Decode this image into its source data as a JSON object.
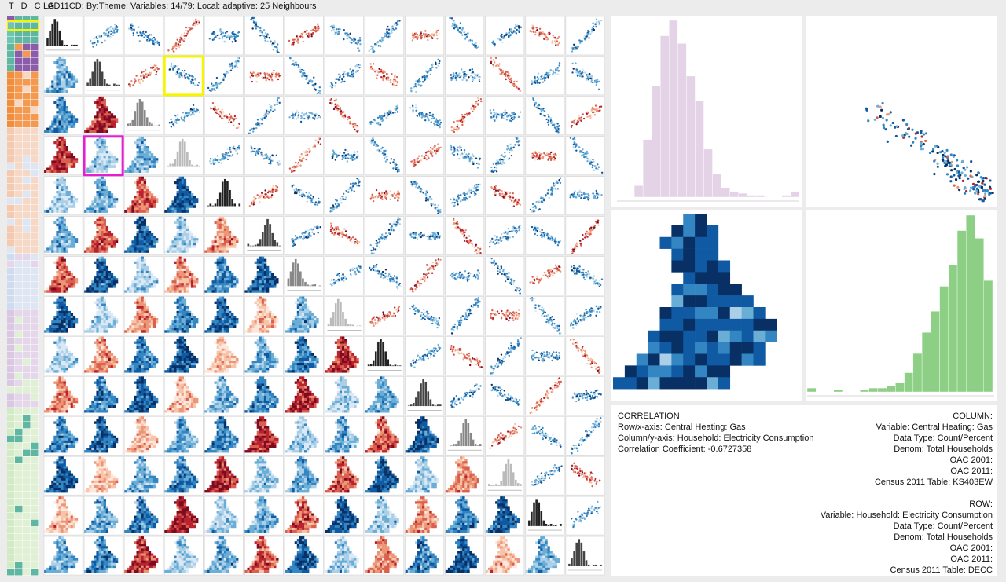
{
  "header": {
    "tdcg": "T D C G",
    "title": "LAD11CD: By:Theme: Variables: 14/79: Local: adaptive: 25 Neighbours"
  },
  "colors": {
    "reds": [
      "#fde7dc",
      "#f7c4a9",
      "#ec9677",
      "#d9604f",
      "#b9222f",
      "#7c0b22"
    ],
    "blues": [
      "#dbe9f6",
      "#abcfe6",
      "#6aaed6",
      "#3486c2",
      "#0f5aa3",
      "#083064"
    ],
    "neutral": "#f5f5f5",
    "hist_purple": "#e4d3e7",
    "hist_green": "#8ccf85",
    "highlight_yellow": "#f5f500",
    "highlight_magenta": "#e51fd0"
  },
  "correlation": {
    "heading": "CORRELATION",
    "row_axis": "Row/x-axis: Central Heating: Gas",
    "col_axis": "Column/y-axis: Household: Electricity Consumption",
    "coefficient": "Correlation Coefficient: -0.6727358"
  },
  "column": {
    "heading": "COLUMN:",
    "variable": "Variable: Central Heating: Gas",
    "data_type": "Data Type: Count/Percent",
    "denom": "Denom: Total Households",
    "oac2001": "OAC 2001:",
    "oac2011": "OAC 2011:",
    "census": "Census 2011 Table: KS403EW"
  },
  "row": {
    "heading": "ROW:",
    "variable": "Variable: Household: Electricity Consumption",
    "data_type": "Data Type: Count/Percent",
    "denom": "Denom: Total Households",
    "oac2001": "OAC 2001:",
    "oac2011": "OAC 2011:",
    "census": "Census 2011 Table: DECC"
  },
  "chart_data": {
    "type": "scatter",
    "matrix_size": 14,
    "cell_kinds": "above diagonal: scatterplots; diagonal: histograms; below diagonal: choropleth maps",
    "highlights": [
      {
        "row": 2,
        "col": 4,
        "color": "highlight_yellow"
      },
      {
        "row": 4,
        "col": 2,
        "color": "highlight_magenta"
      }
    ],
    "selected_pair": {
      "x_variable": "Central Heating: Gas",
      "y_variable": "Household: Electricity Consumption",
      "correlation": -0.6727358
    },
    "large_histogram_1": {
      "color": "#e4d3e7",
      "bin_counts": [
        0,
        0,
        6,
        30,
        58,
        84,
        92,
        80,
        63,
        50,
        25,
        12,
        5,
        3,
        2,
        1,
        1,
        0,
        0,
        1,
        3
      ]
    },
    "large_histogram_2": {
      "color": "#8ccf85",
      "bin_counts": [
        2,
        0,
        0,
        1,
        0,
        0,
        1,
        2,
        2,
        3,
        5,
        10,
        20,
        31,
        42,
        55,
        66,
        84,
        92,
        80,
        58
      ]
    }
  }
}
